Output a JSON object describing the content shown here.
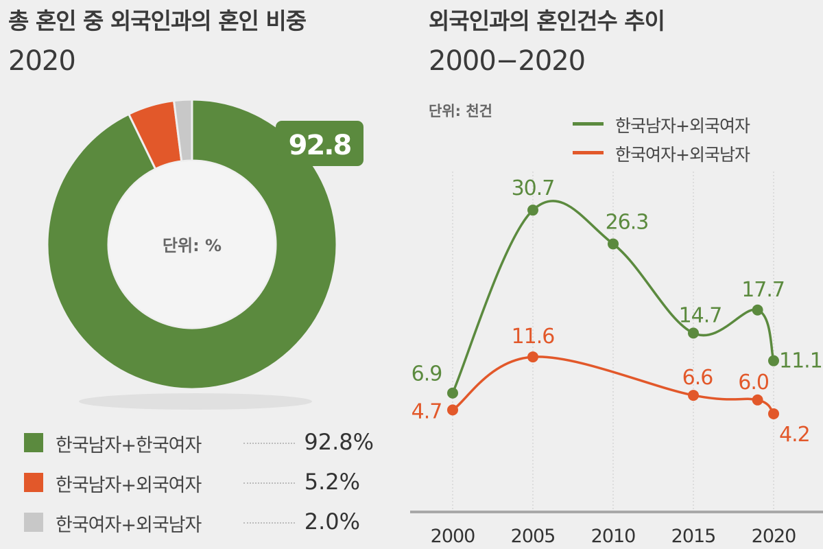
{
  "colors": {
    "green": "#5b8a3e",
    "orange": "#e2582a",
    "gray": "#c8c8c8",
    "axis": "#999999"
  },
  "chart_data": [
    {
      "type": "pie",
      "title": "총 혼인 중 외국인과의 혼인 비중",
      "subtitle": "2020",
      "unit_label": "단위: %",
      "highlight_label": "92.8",
      "donut": true,
      "slices": [
        {
          "name": "한국남자+한국여자",
          "value": 92.8,
          "value_label": "92.8%",
          "color": "#5b8a3e"
        },
        {
          "name": "한국남자+외국여자",
          "value": 5.2,
          "value_label": "5.2%",
          "color": "#e2582a"
        },
        {
          "name": "한국여자+외국남자",
          "value": 2.0,
          "value_label": "2.0%",
          "color": "#c8c8c8"
        }
      ],
      "legend": "bottom"
    },
    {
      "type": "line",
      "title": "외국인과의 혼인건수 추이",
      "subtitle": "2000−2020",
      "unit_label": "단위: 천건",
      "x_ticks": [
        "2000",
        "2005",
        "2010",
        "2015",
        "2020"
      ],
      "xlim": [
        2000,
        2020
      ],
      "ylim": [
        0,
        35
      ],
      "grid": "vertical-dotted",
      "legend": "top-right",
      "series": [
        {
          "name": "한국남자+외국여자",
          "color": "#5b8a3e",
          "x": [
            2000,
            2005,
            2010,
            2015,
            2019,
            2020
          ],
          "y": [
            6.9,
            30.7,
            26.3,
            14.7,
            17.7,
            11.1
          ],
          "labels": [
            "6.9",
            "30.7",
            "26.3",
            "14.7",
            "17.7",
            "11.1"
          ]
        },
        {
          "name": "한국여자+외국남자",
          "color": "#e2582a",
          "x": [
            2000,
            2005,
            2015,
            2019,
            2020
          ],
          "y": [
            4.7,
            11.6,
            6.6,
            6.0,
            4.2
          ],
          "labels": [
            "4.7",
            "11.6",
            "6.6",
            "6.0",
            "4.2"
          ]
        }
      ]
    }
  ]
}
